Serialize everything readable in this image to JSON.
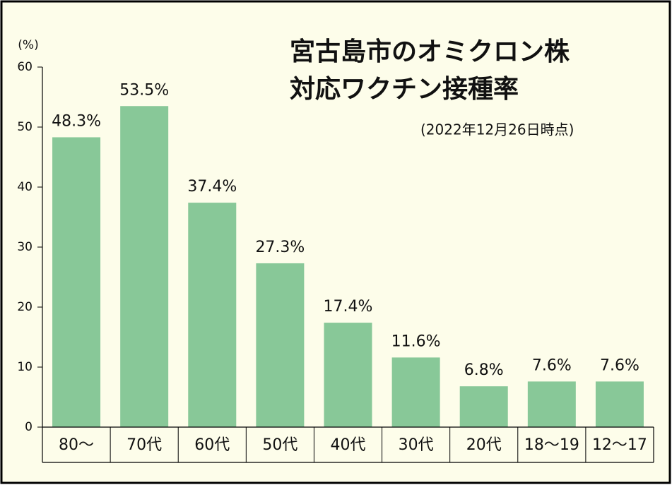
{
  "chart_data": {
    "type": "bar",
    "title": [
      "宮古島市のオミクロン株",
      "対応ワクチン接種率"
    ],
    "subtitle": "(2022年12月26日時点)",
    "y_label": "(%)",
    "categories": [
      "80～",
      "70代",
      "60代",
      "50代",
      "40代",
      "30代",
      "20代",
      "18～19",
      "12～17"
    ],
    "values": [
      48.3,
      53.5,
      37.4,
      27.3,
      17.4,
      11.6,
      6.8,
      7.6,
      7.6
    ],
    "value_labels": [
      "48.3%",
      "53.5%",
      "37.4%",
      "27.3%",
      "17.4%",
      "11.6%",
      "6.8%",
      "7.6%",
      "7.6%"
    ],
    "color": "#88c898",
    "ylim": [
      0,
      60
    ],
    "yticks": [
      0,
      10,
      20,
      30,
      40,
      50,
      60
    ]
  }
}
